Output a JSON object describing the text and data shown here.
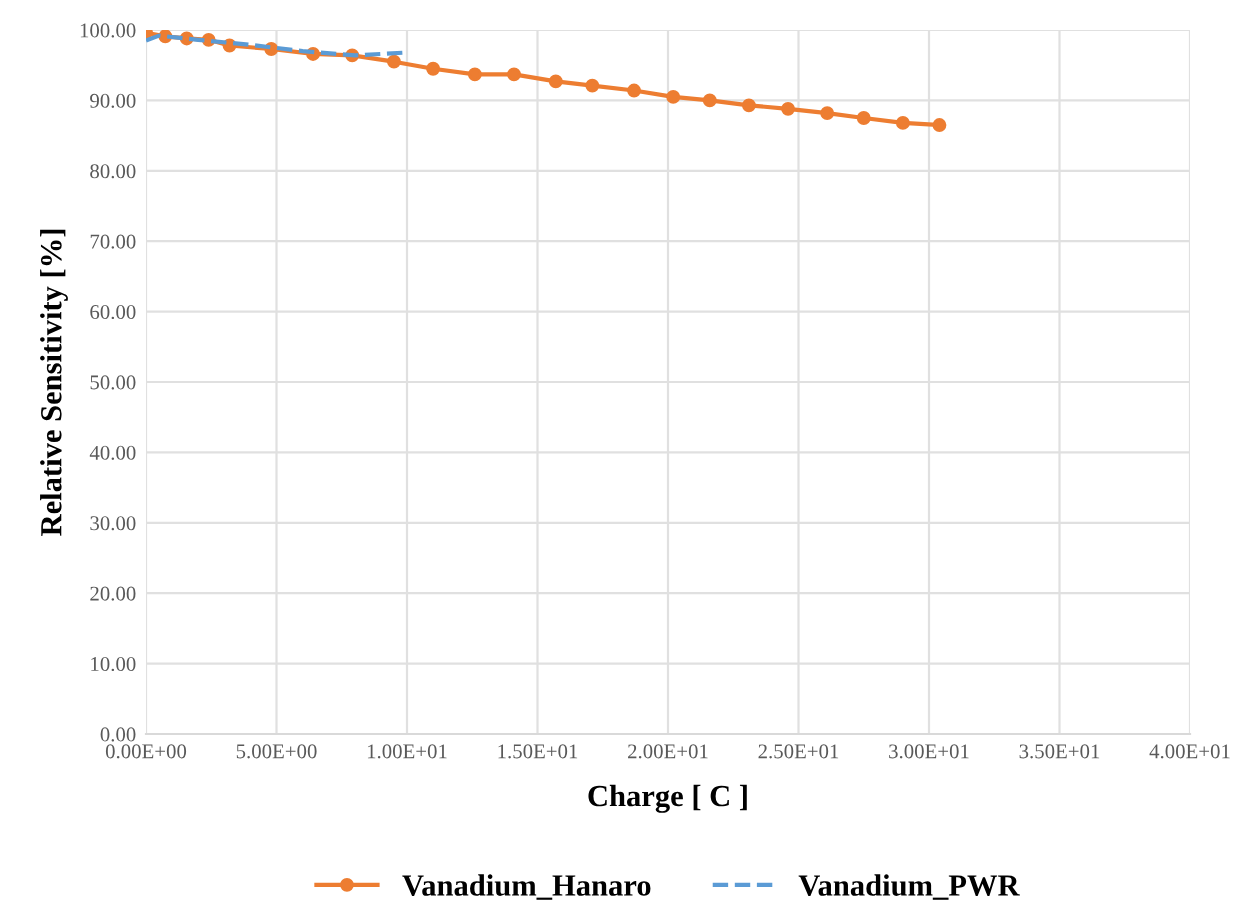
{
  "chart_data": {
    "type": "line",
    "xlabel": "Charge [ C ]",
    "ylabel": "Relative Sensitivity [%]",
    "xlim": [
      0,
      40
    ],
    "xticks": [
      {
        "value": 0,
        "label": "0.00E+00"
      },
      {
        "value": 5,
        "label": "5.00E+00"
      },
      {
        "value": 10,
        "label": "1.00E+01"
      },
      {
        "value": 15,
        "label": "1.50E+01"
      },
      {
        "value": 20,
        "label": "2.00E+01"
      },
      {
        "value": 25,
        "label": "2.50E+01"
      },
      {
        "value": 30,
        "label": "3.00E+01"
      },
      {
        "value": 35,
        "label": "3.50E+01"
      },
      {
        "value": 40,
        "label": "4.00E+01"
      }
    ],
    "ylim": [
      0,
      100
    ],
    "yticks": [
      {
        "value": 0,
        "label": "0.00"
      },
      {
        "value": 10,
        "label": "10.00"
      },
      {
        "value": 20,
        "label": "20.00"
      },
      {
        "value": 30,
        "label": "30.00"
      },
      {
        "value": 40,
        "label": "40.00"
      },
      {
        "value": 50,
        "label": "50.00"
      },
      {
        "value": 60,
        "label": "60.00"
      },
      {
        "value": 70,
        "label": "70.00"
      },
      {
        "value": 80,
        "label": "80.00"
      },
      {
        "value": 90,
        "label": "90.00"
      },
      {
        "value": 100,
        "label": "100.00"
      }
    ],
    "grid": true,
    "legend": "bottom",
    "series": [
      {
        "name": "Vanadium_Hanaro",
        "color": "#ed7d31",
        "marker": "circle",
        "line_style": "solid",
        "x": [
          0,
          0.74,
          1.56,
          2.4,
          3.2,
          4.8,
          6.4,
          7.9,
          9.5,
          11.0,
          12.6,
          14.1,
          15.7,
          17.1,
          18.7,
          20.2,
          21.6,
          23.1,
          24.6,
          26.1,
          27.5,
          29.0,
          30.4
        ],
        "values": [
          99.6,
          99.1,
          98.8,
          98.6,
          97.8,
          97.3,
          96.6,
          96.4,
          95.5,
          94.5,
          93.7,
          93.7,
          92.7,
          92.1,
          91.4,
          90.5,
          90.0,
          89.3,
          88.8,
          88.2,
          87.5,
          86.8,
          86.5
        ]
      },
      {
        "name": "Vanadium_PWR",
        "color": "#5b9bd5",
        "marker": "none",
        "line_style": "dashed",
        "x": [
          0,
          0.5,
          2,
          4,
          6,
          8,
          10
        ],
        "values": [
          98.5,
          99.2,
          98.6,
          97.9,
          97.0,
          96.4,
          96.8
        ]
      }
    ]
  }
}
